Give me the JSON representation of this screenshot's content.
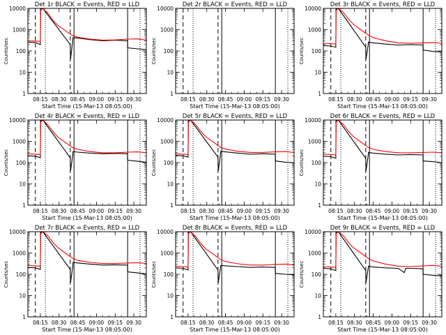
{
  "chart_data": [
    {
      "type": "line",
      "title": "Det 1r BLACK = Events, RED = LLD",
      "ylabel": "Counts/sec",
      "xlabel": "Start Time (15-Mar-13 08:05:00)",
      "yscale": "log",
      "ylim": [
        1,
        10000
      ],
      "xlim_minutes": [
        0,
        95
      ],
      "yticks": [
        "1",
        "10",
        "100",
        "1000",
        "10000"
      ],
      "xticks": [
        "08:15",
        "08:30",
        "08:45",
        "09:00",
        "09:15",
        "09:30"
      ],
      "series": [
        {
          "color": "#000000",
          "x_minutes": [
            0,
            6,
            10,
            10.2,
            12,
            34,
            34.2,
            36,
            36.2,
            40,
            50,
            60,
            70,
            79.9,
            80,
            88,
            95
          ],
          "y": [
            260,
            250,
            200,
            9500,
            10000,
            200,
            40,
            300,
            420,
            400,
            340,
            300,
            320,
            300,
            140,
            125,
            115
          ]
        },
        {
          "color": "#ff0000",
          "x_minutes": [
            0,
            6,
            10,
            10.2,
            12,
            16,
            20,
            24,
            30,
            36,
            40,
            50,
            60,
            70,
            80,
            88,
            95
          ],
          "y": [
            300,
            290,
            280,
            8000,
            10000,
            6000,
            2800,
            1600,
            900,
            520,
            440,
            360,
            320,
            330,
            360,
            370,
            320
          ]
        }
      ]
    },
    {
      "type": "line",
      "title": "Det 2r BLACK = Events, RED = LLD",
      "ylabel": "Counts/sec",
      "xlabel": "Start Time (15-Mar-13 08:05:00)",
      "yscale": "log",
      "ylim": [
        1,
        10000
      ],
      "xlim_minutes": [
        0,
        95
      ],
      "yticks": [
        "1",
        "10",
        "100",
        "1000",
        "10000"
      ],
      "xticks": [
        "08:15",
        "08:30",
        "08:45",
        "09:00",
        "09:15",
        "09:30"
      ],
      "series": []
    },
    {
      "type": "line",
      "title": "Det 3r BLACK = Events, RED = LLD",
      "ylabel": "Counts/sec",
      "xlabel": "Start Time (15-Mar-13 08:05:00)",
      "yscale": "log",
      "ylim": [
        1,
        10000
      ],
      "xlim_minutes": [
        0,
        95
      ],
      "yticks": [
        "1",
        "10",
        "100",
        "1000",
        "10000"
      ],
      "xticks": [
        "08:15",
        "08:30",
        "08:45",
        "09:00",
        "09:15",
        "09:30"
      ],
      "series": [
        {
          "color": "#000000",
          "x_minutes": [
            0,
            6,
            10,
            10.2,
            12,
            34,
            34.2,
            36,
            36.2,
            40,
            50,
            60,
            70,
            79.9,
            80,
            88,
            95
          ],
          "y": [
            180,
            170,
            150,
            9500,
            10000,
            150,
            40,
            200,
            260,
            240,
            210,
            190,
            200,
            190,
            110,
            95,
            90
          ]
        },
        {
          "color": "#ff0000",
          "x_minutes": [
            0,
            6,
            10,
            10.2,
            12,
            16,
            20,
            24,
            30,
            36,
            40,
            50,
            60,
            70,
            80,
            88,
            95
          ],
          "y": [
            230,
            220,
            210,
            8000,
            10000,
            6500,
            3200,
            1800,
            1000,
            560,
            420,
            300,
            240,
            230,
            240,
            250,
            230
          ]
        }
      ]
    },
    {
      "type": "line",
      "title": "Det 4r BLACK = Events, RED = LLD",
      "ylabel": "Counts/sec",
      "xlabel": "Start Time (15-Mar-13 08:05:00)",
      "yscale": "log",
      "ylim": [
        1,
        10000
      ],
      "xlim_minutes": [
        0,
        95
      ],
      "yticks": [
        "1",
        "10",
        "100",
        "1000",
        "10000"
      ],
      "xticks": [
        "08:15",
        "08:30",
        "08:45",
        "09:00",
        "09:15",
        "09:30"
      ],
      "series": [
        {
          "color": "#000000",
          "x_minutes": [
            0,
            6,
            10,
            10.2,
            12,
            34,
            34.2,
            36,
            36.2,
            40,
            50,
            60,
            70,
            79.9,
            80,
            88,
            95
          ],
          "y": [
            210,
            200,
            170,
            9500,
            10000,
            170,
            40,
            220,
            330,
            310,
            280,
            260,
            270,
            260,
            130,
            115,
            105
          ]
        },
        {
          "color": "#ff0000",
          "x_minutes": [
            0,
            6,
            10,
            10.2,
            12,
            16,
            20,
            24,
            30,
            36,
            40,
            50,
            60,
            70,
            80,
            88,
            95
          ],
          "y": [
            260,
            250,
            240,
            8000,
            10000,
            6000,
            2900,
            1600,
            900,
            500,
            420,
            330,
            290,
            290,
            310,
            320,
            290
          ]
        }
      ]
    },
    {
      "type": "line",
      "title": "Det 5r BLACK = Events, RED = LLD",
      "ylabel": "Counts/sec",
      "xlabel": "Start Time (15-Mar-13 08:05:00)",
      "yscale": "log",
      "ylim": [
        1,
        10000
      ],
      "xlim_minutes": [
        0,
        95
      ],
      "yticks": [
        "1",
        "10",
        "100",
        "1000",
        "10000"
      ],
      "xticks": [
        "08:15",
        "08:30",
        "08:45",
        "09:00",
        "09:15",
        "09:30"
      ],
      "series": [
        {
          "color": "#000000",
          "x_minutes": [
            0,
            6,
            10,
            10.2,
            12,
            34,
            34.2,
            36,
            36.2,
            40,
            50,
            60,
            70,
            79.9,
            80,
            88,
            95
          ],
          "y": [
            220,
            210,
            180,
            9500,
            10000,
            180,
            40,
            240,
            340,
            320,
            280,
            250,
            260,
            250,
            120,
            105,
            100
          ]
        },
        {
          "color": "#ff0000",
          "x_minutes": [
            0,
            6,
            10,
            10.2,
            12,
            16,
            20,
            24,
            30,
            36,
            40,
            50,
            60,
            70,
            80,
            88,
            95
          ],
          "y": [
            260,
            250,
            240,
            8000,
            10000,
            6200,
            3000,
            1700,
            950,
            520,
            430,
            340,
            300,
            300,
            320,
            330,
            300
          ]
        }
      ]
    },
    {
      "type": "line",
      "title": "Det 6r BLACK = Events, RED = LLD",
      "ylabel": "Counts/sec",
      "xlabel": "Start Time (15-Mar-13 08:05:00)",
      "yscale": "log",
      "ylim": [
        1,
        10000
      ],
      "xlim_minutes": [
        0,
        95
      ],
      "yticks": [
        "1",
        "10",
        "100",
        "1000",
        "10000"
      ],
      "xticks": [
        "08:15",
        "08:30",
        "08:45",
        "09:00",
        "09:15",
        "09:30"
      ],
      "series": [
        {
          "color": "#000000",
          "x_minutes": [
            0,
            6,
            10,
            10.2,
            12,
            34,
            34.2,
            36,
            36.2,
            40,
            50,
            60,
            70,
            79.9,
            80,
            88,
            95
          ],
          "y": [
            200,
            190,
            160,
            9500,
            10000,
            160,
            40,
            220,
            300,
            280,
            250,
            230,
            240,
            230,
            120,
            110,
            100
          ]
        },
        {
          "color": "#ff0000",
          "x_minutes": [
            0,
            6,
            10,
            10.2,
            12,
            16,
            20,
            24,
            30,
            36,
            40,
            50,
            60,
            70,
            80,
            88,
            95
          ],
          "y": [
            250,
            240,
            230,
            8000,
            10000,
            6200,
            3000,
            1700,
            950,
            520,
            420,
            330,
            290,
            290,
            300,
            310,
            290
          ]
        }
      ]
    },
    {
      "type": "line",
      "title": "Det 7r BLACK = Events, RED = LLD",
      "ylabel": "Counts/sec",
      "xlabel": "Start Time (15-Mar-13 08:05:00)",
      "yscale": "log",
      "ylim": [
        1,
        10000
      ],
      "xlim_minutes": [
        0,
        95
      ],
      "yticks": [
        "1",
        "10",
        "100",
        "1000",
        "10000"
      ],
      "xticks": [
        "08:15",
        "08:30",
        "08:45",
        "09:00",
        "09:15",
        "09:30"
      ],
      "series": [
        {
          "color": "#000000",
          "x_minutes": [
            0,
            6,
            10,
            10.2,
            12,
            34,
            34.2,
            36,
            36.2,
            40,
            50,
            60,
            70,
            79.9,
            80,
            88,
            95
          ],
          "y": [
            210,
            200,
            170,
            9500,
            10000,
            170,
            40,
            230,
            360,
            340,
            300,
            270,
            280,
            270,
            130,
            115,
            105
          ]
        },
        {
          "color": "#ff0000",
          "x_minutes": [
            0,
            6,
            10,
            10.2,
            12,
            16,
            20,
            24,
            30,
            36,
            40,
            50,
            60,
            70,
            80,
            88,
            95
          ],
          "y": [
            260,
            250,
            240,
            8000,
            10000,
            6500,
            3200,
            1800,
            1000,
            560,
            450,
            360,
            320,
            320,
            340,
            350,
            320
          ]
        }
      ]
    },
    {
      "type": "line",
      "title": "Det 8r BLACK = Events, RED = LLD",
      "ylabel": "Counts/sec",
      "xlabel": "Start Time (15-Mar-13 08:05:00)",
      "yscale": "log",
      "ylim": [
        1,
        10000
      ],
      "xlim_minutes": [
        0,
        95
      ],
      "yticks": [
        "1",
        "10",
        "100",
        "1000",
        "10000"
      ],
      "xticks": [
        "08:15",
        "08:30",
        "08:45",
        "09:00",
        "09:15",
        "09:30"
      ],
      "series": [
        {
          "color": "#000000",
          "x_minutes": [
            0,
            6,
            10,
            10.2,
            12,
            34,
            34.2,
            36,
            36.2,
            40,
            50,
            60,
            70,
            79.9,
            80,
            88,
            95
          ],
          "y": [
            200,
            190,
            160,
            9500,
            10000,
            160,
            40,
            200,
            260,
            250,
            230,
            210,
            220,
            210,
            110,
            100,
            95
          ]
        },
        {
          "color": "#ff0000",
          "x_minutes": [
            0,
            6,
            10,
            10.2,
            12,
            16,
            20,
            24,
            30,
            36,
            40,
            50,
            60,
            70,
            80,
            88,
            95
          ],
          "y": [
            240,
            230,
            220,
            8000,
            10000,
            6000,
            2900,
            1600,
            900,
            500,
            400,
            310,
            270,
            270,
            290,
            300,
            270
          ]
        }
      ]
    },
    {
      "type": "line",
      "title": "Det 9r BLACK = Events, RED = LLD",
      "ylabel": "Counts/sec",
      "xlabel": "Start Time (15-Mar-13 08:05:00)",
      "yscale": "log",
      "ylim": [
        1,
        10000
      ],
      "xlim_minutes": [
        0,
        95
      ],
      "yticks": [
        "1",
        "10",
        "100",
        "1000",
        "10000"
      ],
      "xticks": [
        "08:15",
        "08:30",
        "08:45",
        "09:00",
        "09:15",
        "09:30"
      ],
      "series": [
        {
          "color": "#000000",
          "x_minutes": [
            0,
            6,
            10,
            10.2,
            12,
            34,
            34.2,
            36,
            36.2,
            40,
            50,
            60,
            65,
            66,
            70,
            79.9,
            80,
            88,
            95
          ],
          "y": [
            190,
            180,
            150,
            9500,
            10000,
            150,
            40,
            200,
            240,
            220,
            200,
            190,
            120,
            190,
            190,
            180,
            100,
            90,
            85
          ]
        },
        {
          "color": "#ff0000",
          "x_minutes": [
            0,
            6,
            10,
            10.2,
            12,
            16,
            20,
            24,
            30,
            36,
            40,
            50,
            60,
            70,
            80,
            88,
            95
          ],
          "y": [
            230,
            220,
            210,
            8000,
            10000,
            6500,
            3200,
            1800,
            1000,
            560,
            420,
            300,
            240,
            230,
            250,
            260,
            240
          ]
        }
      ]
    }
  ]
}
